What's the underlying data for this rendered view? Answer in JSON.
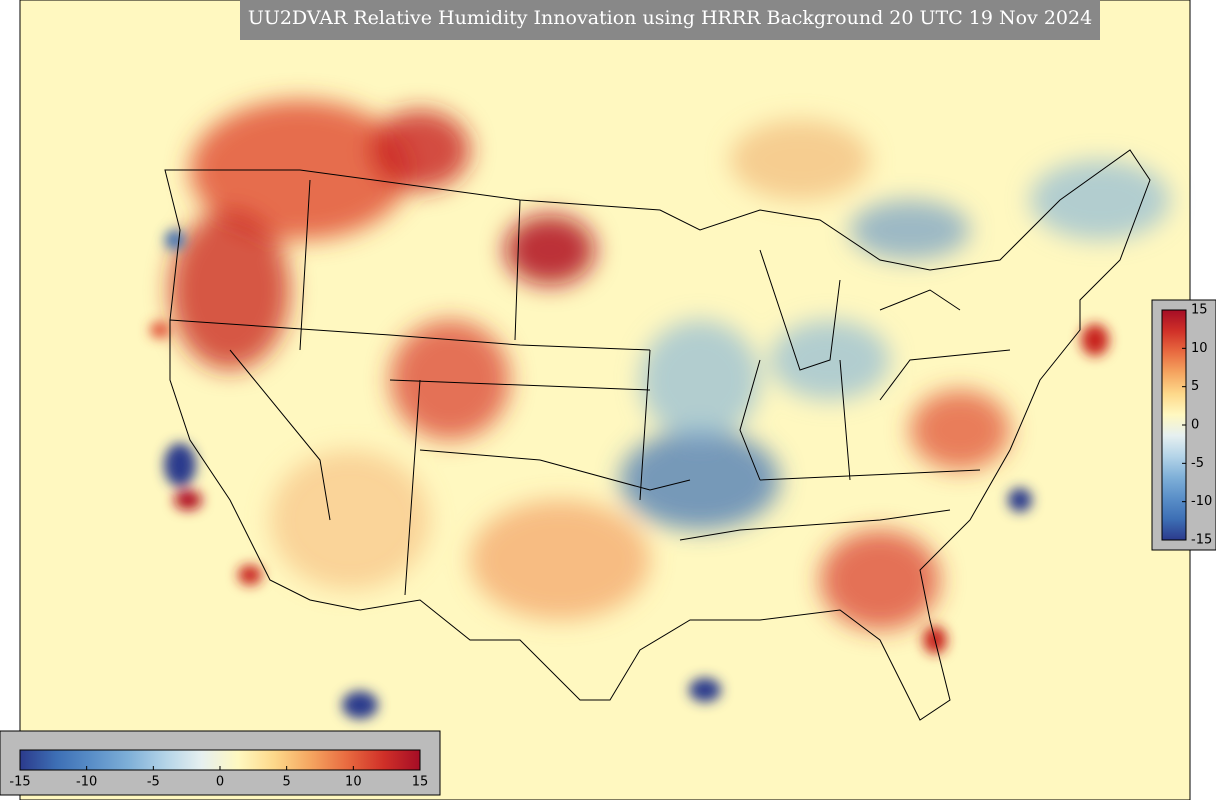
{
  "title": "UU2DVAR Relative Humidity Innovation using HRRR Background 20 UTC 19 Nov 2024",
  "colorbars": [
    {
      "orientation": "horizontal",
      "ticks": [
        -15,
        -10,
        -5,
        0,
        5,
        10,
        15
      ]
    },
    {
      "orientation": "vertical",
      "ticks": [
        -15,
        -10,
        -5,
        0,
        5,
        10,
        15
      ]
    }
  ]
}
